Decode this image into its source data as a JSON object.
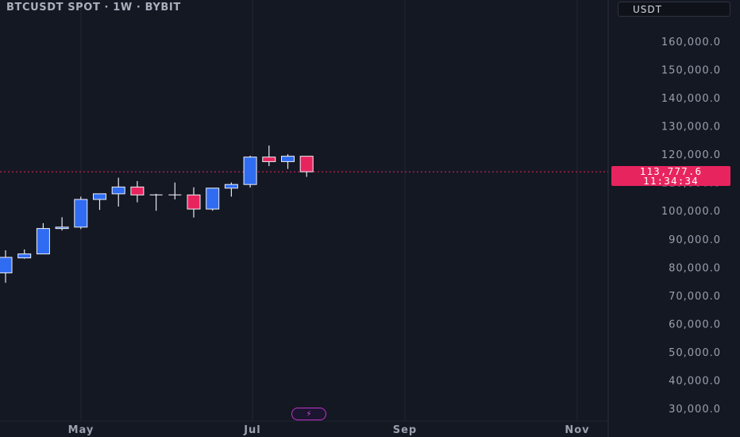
{
  "header": {
    "title": "BTCUSDT SPOT · 1W · BYBIT",
    "currency": "USDT"
  },
  "last_price": {
    "value": "113,777.6",
    "countdown": "11:34:34"
  },
  "colors": {
    "background": "#141823",
    "up": "#2f6cf2",
    "down": "#e8245e",
    "wick": "#e6e8ee",
    "price_line": "#e8245e",
    "axis_text": "#9aa0ae"
  },
  "chart_data": {
    "type": "candlestick",
    "title": "BTCUSDT SPOT · 1W · BYBIT",
    "ylim": [
      28000,
      168000
    ],
    "y_ticks": [
      "160,000.0",
      "150,000.0",
      "140,000.0",
      "130,000.0",
      "120,000.0",
      "110,000.0",
      "100,000.0",
      "90,000.0",
      "80,000.0",
      "70,000.0",
      "60,000.0",
      "50,000.0",
      "40,000.0",
      "30,000.0"
    ],
    "x_ticks": [
      "May",
      "Jul",
      "Sep",
      "Nov"
    ],
    "last_price": 113777.6,
    "candles": [
      {
        "open": 78000,
        "high": 86000,
        "low": 74500,
        "close": 83500
      },
      {
        "open": 83300,
        "high": 86300,
        "low": 83000,
        "close": 84700
      },
      {
        "open": 84700,
        "high": 95600,
        "low": 84700,
        "close": 93700
      },
      {
        "open": 93700,
        "high": 97700,
        "low": 93000,
        "close": 94200
      },
      {
        "open": 94200,
        "high": 105000,
        "low": 93500,
        "close": 104000
      },
      {
        "open": 104000,
        "high": 106000,
        "low": 100300,
        "close": 106000
      },
      {
        "open": 106000,
        "high": 111700,
        "low": 101500,
        "close": 108400
      },
      {
        "open": 108400,
        "high": 110500,
        "low": 103000,
        "close": 105600
      },
      {
        "open": 105600,
        "high": 106000,
        "low": 100000,
        "close": 105600
      },
      {
        "open": 105600,
        "high": 110000,
        "low": 104000,
        "close": 105600
      },
      {
        "open": 105600,
        "high": 108300,
        "low": 97600,
        "close": 100600
      },
      {
        "open": 100600,
        "high": 108000,
        "low": 100000,
        "close": 108000
      },
      {
        "open": 108000,
        "high": 110000,
        "low": 105000,
        "close": 109300
      },
      {
        "open": 109300,
        "high": 119500,
        "low": 108200,
        "close": 119000
      },
      {
        "open": 119000,
        "high": 123100,
        "low": 115800,
        "close": 117400
      },
      {
        "open": 117400,
        "high": 120000,
        "low": 114800,
        "close": 119300
      },
      {
        "open": 119300,
        "high": 119300,
        "low": 112000,
        "close": 113800
      }
    ]
  }
}
